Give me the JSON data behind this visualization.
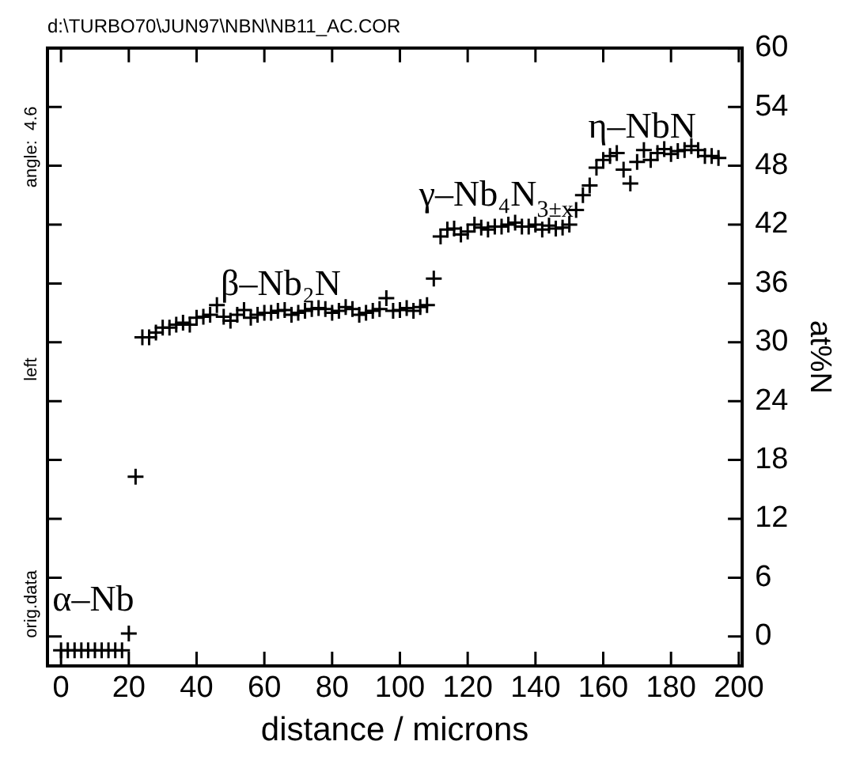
{
  "chart_data": {
    "type": "scatter",
    "title": "d:\\TURBO70\\JUN97\\NBN\\NB11_AC.COR",
    "xlabel": "distance / microns",
    "ylabel": "at%N",
    "x": [
      0,
      2,
      4,
      6,
      8,
      10,
      12,
      14,
      16,
      18,
      20,
      22,
      24,
      26,
      28,
      30,
      32,
      34,
      36,
      38,
      40,
      42,
      44,
      46,
      48,
      50,
      52,
      54,
      56,
      58,
      60,
      62,
      64,
      66,
      68,
      70,
      72,
      74,
      76,
      78,
      80,
      82,
      84,
      86,
      88,
      90,
      92,
      94,
      96,
      98,
      100,
      102,
      104,
      106,
      108,
      110,
      112,
      114,
      116,
      118,
      120,
      122,
      124,
      126,
      128,
      130,
      132,
      134,
      136,
      138,
      140,
      142,
      144,
      146,
      148,
      150,
      152,
      154,
      156,
      158,
      160,
      162,
      164,
      166,
      168,
      170,
      172,
      174,
      176,
      178,
      180,
      182,
      184,
      186,
      188,
      190,
      192,
      194
    ],
    "values": [
      -1.4,
      -1.4,
      -1.4,
      -1.4,
      -1.4,
      -1.4,
      -1.4,
      -1.4,
      -1.4,
      -1.4,
      0.3,
      16.3,
      30.5,
      30.5,
      31,
      31.5,
      31.5,
      31.8,
      32,
      31.8,
      32.5,
      32.6,
      32.8,
      33.8,
      32.6,
      32.2,
      32.8,
      33.3,
      32.5,
      32.8,
      33,
      33,
      33.2,
      33.3,
      32.8,
      33,
      33.2,
      33.4,
      33.5,
      33.4,
      33,
      33.2,
      33.6,
      33.4,
      32.8,
      33,
      33.2,
      33.4,
      34.5,
      33.2,
      33.3,
      33.5,
      33.2,
      33.6,
      33.8,
      36.5,
      40.8,
      41.5,
      41.6,
      41,
      41.3,
      42,
      41.7,
      41.5,
      41.8,
      41.8,
      42,
      42.2,
      41.8,
      41.8,
      42,
      41.5,
      41.9,
      41.6,
      41.7,
      42,
      43.5,
      45,
      46,
      47.8,
      48.6,
      49,
      49.3,
      47.6,
      46.2,
      48.4,
      49.6,
      48.6,
      49.3,
      49.7,
      49.2,
      49.5,
      49.6,
      50,
      49.6,
      49,
      49,
      48.8
    ],
    "color": "#000000",
    "marker": "cross",
    "xlim": [
      -4,
      201
    ],
    "ylim": [
      -3,
      60
    ],
    "xticks": [
      0,
      20,
      40,
      60,
      80,
      100,
      120,
      140,
      160,
      180,
      200
    ],
    "yticks": [
      0,
      6,
      12,
      18,
      24,
      30,
      36,
      42,
      48,
      54,
      60
    ],
    "grid": false,
    "legend": false,
    "annotations": [
      "angle:  4.6",
      "left",
      "orig.data",
      "α–Nb",
      "β–Nb₂N",
      "γ–Nb₄N$_{3±x}$",
      "η–NbN"
    ]
  }
}
